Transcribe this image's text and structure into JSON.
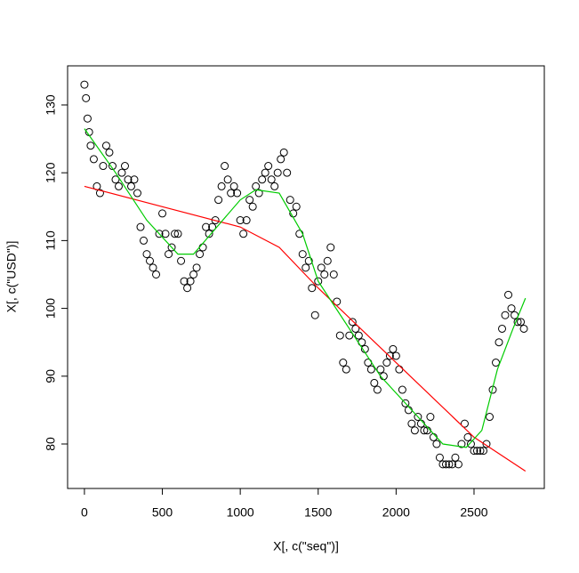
{
  "chart_data": {
    "type": "scatter",
    "x_label": "X[, c(\"seq\")]",
    "y_label": "X[, c(\"USD\")]",
    "xlim": [
      -108,
      2951
    ],
    "ylim": [
      73.44,
      135.77
    ],
    "xticks": [
      0,
      500,
      1000,
      1500,
      2000,
      2500
    ],
    "yticks": [
      80,
      90,
      100,
      110,
      120,
      130
    ],
    "grid": false,
    "series": [
      {
        "type": "scatter",
        "color": "#000000",
        "x": [
          0,
          10,
          20,
          30,
          40,
          60,
          80,
          100,
          120,
          140,
          160,
          180,
          200,
          220,
          240,
          260,
          280,
          300,
          320,
          340,
          360,
          380,
          400,
          420,
          440,
          460,
          480,
          500,
          520,
          540,
          560,
          580,
          600,
          620,
          640,
          660,
          680,
          700,
          720,
          740,
          760,
          780,
          800,
          820,
          840,
          860,
          880,
          900,
          920,
          940,
          960,
          980,
          1000,
          1020,
          1040,
          1060,
          1080,
          1100,
          1120,
          1140,
          1160,
          1180,
          1200,
          1220,
          1240,
          1260,
          1280,
          1300,
          1320,
          1340,
          1360,
          1380,
          1400,
          1420,
          1440,
          1460,
          1480,
          1500,
          1520,
          1540,
          1560,
          1580,
          1600,
          1620,
          1640,
          1660,
          1680,
          1700,
          1720,
          1740,
          1760,
          1780,
          1800,
          1820,
          1840,
          1860,
          1880,
          1900,
          1920,
          1940,
          1960,
          1980,
          2000,
          2020,
          2040,
          2060,
          2080,
          2100,
          2120,
          2140,
          2160,
          2180,
          2200,
          2220,
          2240,
          2260,
          2280,
          2300,
          2320,
          2340,
          2360,
          2380,
          2400,
          2420,
          2440,
          2460,
          2480,
          2500,
          2520,
          2540,
          2560,
          2580,
          2600,
          2620,
          2640,
          2660,
          2680,
          2700,
          2720,
          2740,
          2760,
          2780,
          2800,
          2820
        ],
        "values": [
          133,
          131,
          128,
          126,
          124,
          122,
          118,
          117,
          121,
          124,
          123,
          121,
          119,
          118,
          120,
          121,
          119,
          118,
          119,
          117,
          112,
          110,
          108,
          107,
          106,
          105,
          111,
          114,
          111,
          108,
          109,
          111,
          111,
          107,
          104,
          103,
          104,
          105,
          106,
          108,
          109,
          112,
          111,
          112,
          113,
          116,
          118,
          121,
          119,
          117,
          118,
          117,
          113,
          111,
          113,
          116,
          115,
          118,
          117,
          119,
          120,
          121,
          119,
          118,
          120,
          122,
          123,
          120,
          116,
          114,
          115,
          111,
          108,
          106,
          107,
          103,
          99,
          104,
          106,
          105,
          107,
          109,
          105,
          101,
          96,
          92,
          91,
          96,
          98,
          97,
          96,
          95,
          94,
          92,
          91,
          89,
          88,
          91,
          90,
          92,
          93,
          94,
          93,
          91,
          88,
          86,
          85,
          83,
          82,
          84,
          83,
          82,
          82,
          84,
          81,
          80,
          78,
          77,
          77,
          77,
          77,
          78,
          77,
          80,
          83,
          81,
          80,
          79,
          79,
          79,
          79,
          80,
          84,
          88,
          92,
          95,
          97,
          99,
          102,
          100,
          99,
          98,
          98,
          97
        ]
      },
      {
        "type": "line",
        "color": "#ff0000",
        "x": [
          0,
          500,
          1000,
          1250,
          1500,
          2000,
          2500,
          2830
        ],
        "values": [
          118,
          115,
          112,
          109,
          103,
          92,
          81,
          76
        ]
      },
      {
        "type": "line",
        "color": "#00cc00",
        "x": [
          0,
          200,
          400,
          600,
          700,
          850,
          1000,
          1100,
          1250,
          1400,
          1500,
          1700,
          1900,
          2100,
          2300,
          2450,
          2550,
          2650,
          2750,
          2830
        ],
        "values": [
          126.5,
          120,
          113,
          108,
          108,
          112,
          116,
          117.5,
          117,
          111,
          104,
          97,
          90,
          85,
          80,
          79.5,
          82,
          91,
          97,
          101.5
        ]
      }
    ]
  }
}
